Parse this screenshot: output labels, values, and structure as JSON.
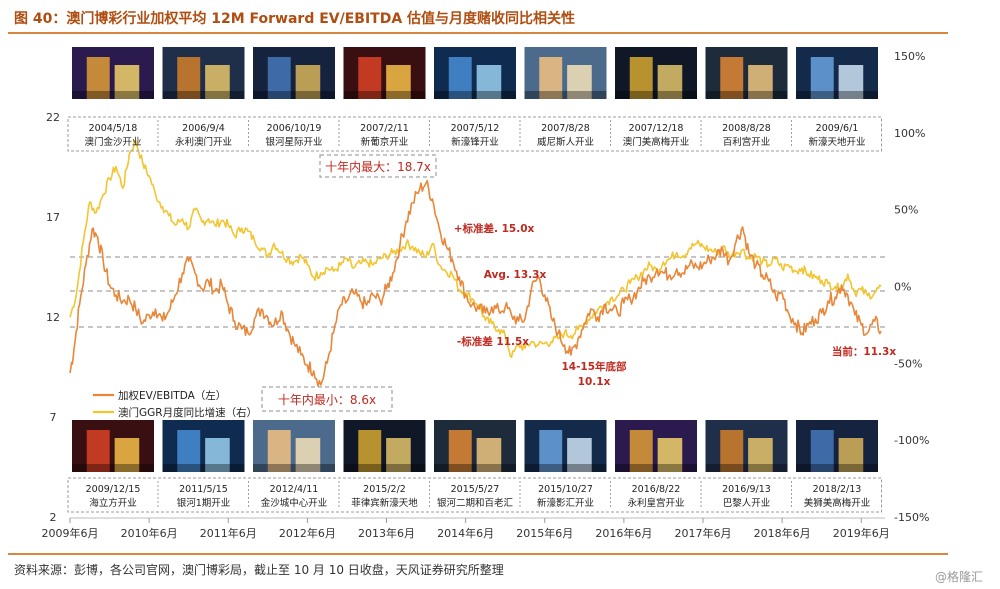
{
  "title": "图 40：澳门博彩行业加权平均 12M Forward EV/EBITDA 估值与月度赌收同比相关性",
  "source": "资料来源：彭博，各公司官网，澳门博彩局，截止至 10 月 10 日收盘，天风证券研究所整理",
  "watermark": "@格隆汇",
  "colors": {
    "ev_line": "#e8873a",
    "ggr_line": "#f2c531",
    "title": "#b04d10",
    "label_red": "#c0291f"
  },
  "top_casinos": [
    {
      "date": "2004/5/18",
      "name": "澳门金沙开业",
      "icon": "casino-photo"
    },
    {
      "date": "2006/9/4",
      "name": "永利澳门开业",
      "icon": "casino-photo"
    },
    {
      "date": "2006/10/19",
      "name": "银河星际开业",
      "icon": "casino-photo"
    },
    {
      "date": "2007/2/11",
      "name": "新葡京开业",
      "icon": "casino-photo"
    },
    {
      "date": "2007/5/12",
      "name": "新濠锋开业",
      "icon": "casino-photo"
    },
    {
      "date": "2007/8/28",
      "name": "威尼斯人开业",
      "icon": "casino-photo"
    },
    {
      "date": "2007/12/18",
      "name": "澳门美高梅开业",
      "icon": "casino-photo"
    },
    {
      "date": "2008/8/28",
      "name": "百利宫开业",
      "icon": "casino-photo"
    },
    {
      "date": "2009/6/1",
      "name": "新濠天地开业",
      "icon": "casino-photo"
    }
  ],
  "bottom_casinos": [
    {
      "date": "2009/12/15",
      "name": "海立方开业",
      "icon": "casino-photo"
    },
    {
      "date": "2011/5/15",
      "name": "银河1期开业",
      "icon": "casino-photo"
    },
    {
      "date": "2012/4/11",
      "name": "金沙城中心开业",
      "icon": "casino-photo"
    },
    {
      "date": "2015/2/2",
      "name": "菲律宾新濠天地",
      "icon": "casino-photo"
    },
    {
      "date": "2015/5/27",
      "name": "银河二期和百老汇",
      "icon": "casino-photo"
    },
    {
      "date": "2015/10/27",
      "name": "新濠影汇开业",
      "icon": "casino-photo"
    },
    {
      "date": "2016/8/22",
      "name": "永利皇宫开业",
      "icon": "casino-photo"
    },
    {
      "date": "2016/9/13",
      "name": "巴黎人开业",
      "icon": "casino-photo"
    },
    {
      "date": "2018/2/13",
      "name": "美狮美高梅开业",
      "icon": "casino-photo"
    }
  ],
  "chart_data": {
    "type": "line",
    "x_start": "2009年6月",
    "x_end": "2019年10月",
    "x_tick_labels": [
      "2009年6月",
      "2010年6月",
      "2011年6月",
      "2012年6月",
      "2013年6月",
      "2014年6月",
      "2015年6月",
      "2016年6月",
      "2017年6月",
      "2018年6月",
      "2019年6月"
    ],
    "left_axis": {
      "ticks": [
        2,
        7,
        12,
        17,
        22
      ],
      "range": [
        2,
        22
      ]
    },
    "right_axis": {
      "ticks": [
        "150%",
        "100%",
        "50%",
        "0%",
        "-50%",
        "-100%",
        "-150%"
      ],
      "range": [
        -150,
        150
      ]
    },
    "legend": [
      "加权EV/EBITDA（左）",
      "澳门GGR月度同比增速（右）"
    ],
    "legend_position": "lower-left",
    "reference_lines": [
      {
        "label": "+标准差. 15.0x",
        "value": 15.0
      },
      {
        "label": "Avg. 13.3x",
        "value": 13.3
      },
      {
        "label": "-标准差 11.5x",
        "value": 11.5
      }
    ],
    "annotations": [
      {
        "label": "十年内最大：18.7x",
        "boxed": true
      },
      {
        "label": "十年内最小：8.6x",
        "boxed": true
      },
      {
        "label": "14-15年底部",
        "value_label": "10.1x"
      },
      {
        "label": "当前：11.3x"
      }
    ],
    "series": [
      {
        "name": "加权EV/EBITDA（左）",
        "axis": "left",
        "points": [
          [
            2009.5,
            9.2
          ],
          [
            2009.55,
            10.4
          ],
          [
            2009.62,
            12.6
          ],
          [
            2009.7,
            14.6
          ],
          [
            2009.78,
            16.4
          ],
          [
            2009.85,
            16.0
          ],
          [
            2009.92,
            14.8
          ],
          [
            2010.0,
            13.6
          ],
          [
            2010.08,
            13.1
          ],
          [
            2010.17,
            12.8
          ],
          [
            2010.25,
            12.9
          ],
          [
            2010.33,
            12.4
          ],
          [
            2010.42,
            11.7
          ],
          [
            2010.5,
            12.1
          ],
          [
            2010.58,
            12.4
          ],
          [
            2010.67,
            11.8
          ],
          [
            2010.75,
            12.3
          ],
          [
            2010.83,
            13.1
          ],
          [
            2010.92,
            14.2
          ],
          [
            2011.0,
            14.8
          ],
          [
            2011.08,
            14.2
          ],
          [
            2011.17,
            13.4
          ],
          [
            2011.25,
            13.8
          ],
          [
            2011.33,
            13.3
          ],
          [
            2011.42,
            13.6
          ],
          [
            2011.5,
            12.6
          ],
          [
            2011.58,
            11.8
          ],
          [
            2011.67,
            11.4
          ],
          [
            2011.75,
            11.2
          ],
          [
            2011.83,
            11.9
          ],
          [
            2011.92,
            12.4
          ],
          [
            2012.0,
            12.0
          ],
          [
            2012.08,
            11.6
          ],
          [
            2012.17,
            12.3
          ],
          [
            2012.25,
            11.4
          ],
          [
            2012.33,
            10.7
          ],
          [
            2012.42,
            10.1
          ],
          [
            2012.5,
            9.6
          ],
          [
            2012.58,
            9.3
          ],
          [
            2012.67,
            8.6
          ],
          [
            2012.75,
            9.7
          ],
          [
            2012.83,
            11.2
          ],
          [
            2012.92,
            12.6
          ],
          [
            2013.0,
            12.8
          ],
          [
            2013.08,
            13.2
          ],
          [
            2013.17,
            12.8
          ],
          [
            2013.25,
            12.6
          ],
          [
            2013.33,
            13.1
          ],
          [
            2013.42,
            12.8
          ],
          [
            2013.5,
            13.4
          ],
          [
            2013.58,
            14.2
          ],
          [
            2013.67,
            15.6
          ],
          [
            2013.75,
            16.8
          ],
          [
            2013.83,
            17.7
          ],
          [
            2013.92,
            18.4
          ],
          [
            2014.0,
            18.7
          ],
          [
            2014.08,
            17.9
          ],
          [
            2014.17,
            16.4
          ],
          [
            2014.25,
            15.6
          ],
          [
            2014.33,
            14.9
          ],
          [
            2014.42,
            14.0
          ],
          [
            2014.5,
            13.1
          ],
          [
            2014.58,
            12.6
          ],
          [
            2014.67,
            12.4
          ],
          [
            2014.75,
            12.2
          ],
          [
            2014.83,
            12.5
          ],
          [
            2014.92,
            12.3
          ],
          [
            2015.0,
            12.5
          ],
          [
            2015.08,
            12.1
          ],
          [
            2015.17,
            11.8
          ],
          [
            2015.25,
            11.9
          ],
          [
            2015.33,
            13.4
          ],
          [
            2015.42,
            14.0
          ],
          [
            2015.5,
            13.1
          ],
          [
            2015.58,
            12.0
          ],
          [
            2015.67,
            11.2
          ],
          [
            2015.75,
            10.6
          ],
          [
            2015.83,
            10.1
          ],
          [
            2015.92,
            10.9
          ],
          [
            2016.0,
            11.7
          ],
          [
            2016.08,
            12.4
          ],
          [
            2016.17,
            12.0
          ],
          [
            2016.25,
            12.6
          ],
          [
            2016.33,
            12.4
          ],
          [
            2016.42,
            12.2
          ],
          [
            2016.5,
            12.7
          ],
          [
            2016.58,
            12.9
          ],
          [
            2016.67,
            13.3
          ],
          [
            2016.75,
            13.8
          ],
          [
            2016.83,
            14.0
          ],
          [
            2016.92,
            14.4
          ],
          [
            2017.0,
            14.2
          ],
          [
            2017.08,
            14.1
          ],
          [
            2017.17,
            14.4
          ],
          [
            2017.25,
            14.2
          ],
          [
            2017.33,
            14.6
          ],
          [
            2017.42,
            14.5
          ],
          [
            2017.5,
            14.6
          ],
          [
            2017.58,
            14.9
          ],
          [
            2017.67,
            15.1
          ],
          [
            2017.75,
            15.4
          ],
          [
            2017.83,
            14.8
          ],
          [
            2017.92,
            15.8
          ],
          [
            2018.0,
            16.5
          ],
          [
            2018.08,
            15.2
          ],
          [
            2018.17,
            14.6
          ],
          [
            2018.25,
            14.1
          ],
          [
            2018.33,
            13.8
          ],
          [
            2018.42,
            13.0
          ],
          [
            2018.5,
            13.2
          ],
          [
            2018.58,
            12.2
          ],
          [
            2018.67,
            11.7
          ],
          [
            2018.75,
            11.2
          ],
          [
            2018.83,
            11.6
          ],
          [
            2018.92,
            11.9
          ],
          [
            2019.0,
            12.2
          ],
          [
            2019.08,
            12.8
          ],
          [
            2019.17,
            13.0
          ],
          [
            2019.25,
            13.6
          ],
          [
            2019.33,
            13.1
          ],
          [
            2019.42,
            12.1
          ],
          [
            2019.5,
            11.6
          ],
          [
            2019.58,
            11.2
          ],
          [
            2019.67,
            11.8
          ],
          [
            2019.75,
            11.3
          ]
        ]
      },
      {
        "name": "澳门GGR月度同比增速（右）",
        "axis": "right",
        "points": [
          [
            2009.5,
            -20
          ],
          [
            2009.58,
            -5
          ],
          [
            2009.67,
            30
          ],
          [
            2009.75,
            55
          ],
          [
            2009.83,
            48
          ],
          [
            2009.92,
            60
          ],
          [
            2010.0,
            70
          ],
          [
            2010.08,
            78
          ],
          [
            2010.17,
            64
          ],
          [
            2010.25,
            86
          ],
          [
            2010.33,
            95
          ],
          [
            2010.42,
            80
          ],
          [
            2010.5,
            72
          ],
          [
            2010.58,
            60
          ],
          [
            2010.67,
            52
          ],
          [
            2010.75,
            46
          ],
          [
            2010.83,
            40
          ],
          [
            2010.92,
            44
          ],
          [
            2011.0,
            38
          ],
          [
            2011.08,
            50
          ],
          [
            2011.17,
            42
          ],
          [
            2011.25,
            44
          ],
          [
            2011.33,
            40
          ],
          [
            2011.42,
            43
          ],
          [
            2011.5,
            40
          ],
          [
            2011.58,
            33
          ],
          [
            2011.67,
            38
          ],
          [
            2011.75,
            36
          ],
          [
            2011.83,
            30
          ],
          [
            2011.92,
            25
          ],
          [
            2012.0,
            20
          ],
          [
            2012.08,
            28
          ],
          [
            2012.17,
            22
          ],
          [
            2012.25,
            18
          ],
          [
            2012.33,
            16
          ],
          [
            2012.42,
            20
          ],
          [
            2012.5,
            14
          ],
          [
            2012.58,
            6
          ],
          [
            2012.67,
            9
          ],
          [
            2012.75,
            12
          ],
          [
            2012.83,
            10
          ],
          [
            2012.92,
            14
          ],
          [
            2013.0,
            18
          ],
          [
            2013.08,
            12
          ],
          [
            2013.17,
            15
          ],
          [
            2013.25,
            16
          ],
          [
            2013.33,
            14
          ],
          [
            2013.42,
            18
          ],
          [
            2013.5,
            20
          ],
          [
            2013.58,
            22
          ],
          [
            2013.67,
            24
          ],
          [
            2013.75,
            28
          ],
          [
            2013.83,
            26
          ],
          [
            2013.92,
            22
          ],
          [
            2014.0,
            19
          ],
          [
            2014.08,
            28
          ],
          [
            2014.17,
            14
          ],
          [
            2014.25,
            10
          ],
          [
            2014.33,
            8
          ],
          [
            2014.42,
            -2
          ],
          [
            2014.5,
            -4
          ],
          [
            2014.58,
            -8
          ],
          [
            2014.67,
            -12
          ],
          [
            2014.75,
            -22
          ],
          [
            2014.83,
            -24
          ],
          [
            2014.92,
            -28
          ],
          [
            2015.0,
            -32
          ],
          [
            2015.08,
            -46
          ],
          [
            2015.17,
            -38
          ],
          [
            2015.25,
            -40
          ],
          [
            2015.33,
            -36
          ],
          [
            2015.42,
            -38
          ],
          [
            2015.5,
            -37
          ],
          [
            2015.58,
            -36
          ],
          [
            2015.67,
            -34
          ],
          [
            2015.75,
            -30
          ],
          [
            2015.83,
            -32
          ],
          [
            2015.92,
            -28
          ],
          [
            2016.0,
            -24
          ],
          [
            2016.08,
            -20
          ],
          [
            2016.17,
            -15
          ],
          [
            2016.25,
            -12
          ],
          [
            2016.33,
            -8
          ],
          [
            2016.42,
            -6
          ],
          [
            2016.5,
            -2
          ],
          [
            2016.58,
            2
          ],
          [
            2016.67,
            6
          ],
          [
            2016.75,
            10
          ],
          [
            2016.83,
            14
          ],
          [
            2016.92,
            10
          ],
          [
            2017.0,
            16
          ],
          [
            2017.08,
            18
          ],
          [
            2017.17,
            22
          ],
          [
            2017.25,
            20
          ],
          [
            2017.33,
            25
          ],
          [
            2017.42,
            28
          ],
          [
            2017.5,
            26
          ],
          [
            2017.58,
            24
          ],
          [
            2017.67,
            22
          ],
          [
            2017.75,
            26
          ],
          [
            2017.83,
            20
          ],
          [
            2017.92,
            22
          ],
          [
            2018.0,
            24
          ],
          [
            2018.08,
            18
          ],
          [
            2018.17,
            20
          ],
          [
            2018.25,
            16
          ],
          [
            2018.33,
            14
          ],
          [
            2018.42,
            18
          ],
          [
            2018.5,
            12
          ],
          [
            2018.58,
            14
          ],
          [
            2018.67,
            10
          ],
          [
            2018.75,
            12
          ],
          [
            2018.83,
            8
          ],
          [
            2018.92,
            6
          ],
          [
            2019.0,
            4
          ],
          [
            2019.08,
            2
          ],
          [
            2019.17,
            0
          ],
          [
            2019.25,
            -2
          ],
          [
            2019.33,
            8
          ],
          [
            2019.42,
            -4
          ],
          [
            2019.5,
            -2
          ],
          [
            2019.58,
            -6
          ],
          [
            2019.67,
            -4
          ],
          [
            2019.75,
            0
          ]
        ]
      }
    ]
  }
}
